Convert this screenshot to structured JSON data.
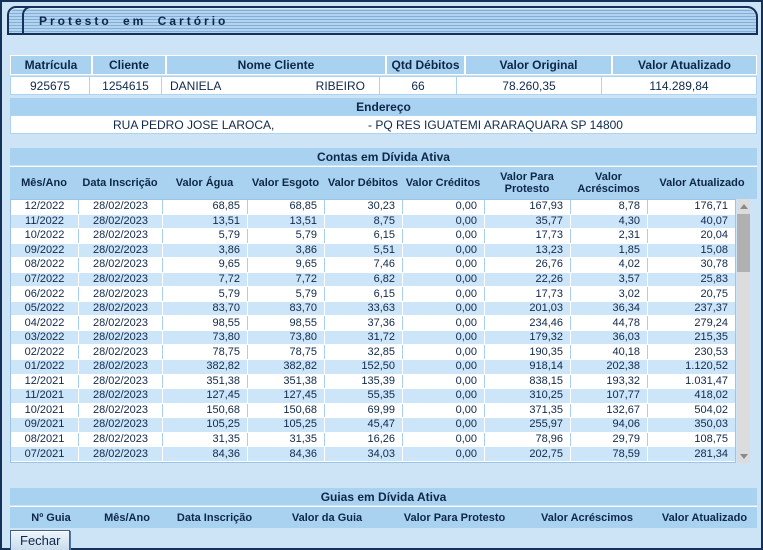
{
  "window": {
    "title": "Protesto em Cartório"
  },
  "summary_table": {
    "headers": [
      "Matrícula",
      "Cliente",
      "Nome Cliente",
      "Qtd Débitos",
      "Valor Original",
      "Valor Atualizado"
    ],
    "row": {
      "matricula": "925675",
      "cliente": "1254615",
      "nome_first": "DANIELA",
      "nome_last": "RIBEIRO",
      "qtd_debitos": "66",
      "valor_original": "78.260,35",
      "valor_atualizado": "114.289,84"
    }
  },
  "endereco": {
    "title": "Endereço",
    "line_left": "RUA PEDRO JOSE LAROCA,",
    "line_right": "- PQ RES IGUATEMI ARARAQUARA SP 14800"
  },
  "contas": {
    "title": "Contas em Dívida Ativa",
    "headers": [
      "Mês/Ano",
      "Data Inscrição",
      "Valor Água",
      "Valor Esgoto",
      "Valor Débitos",
      "Valor Créditos",
      "Valor Para\nProtesto",
      "Valor\nAcréscimos",
      "Valor Atualizado"
    ],
    "rows": [
      [
        "12/2022",
        "28/02/2023",
        "68,85",
        "68,85",
        "30,23",
        "0,00",
        "167,93",
        "8,78",
        "176,71"
      ],
      [
        "11/2022",
        "28/02/2023",
        "13,51",
        "13,51",
        "8,75",
        "0,00",
        "35,77",
        "4,30",
        "40,07"
      ],
      [
        "10/2022",
        "28/02/2023",
        "5,79",
        "5,79",
        "6,15",
        "0,00",
        "17,73",
        "2,31",
        "20,04"
      ],
      [
        "09/2022",
        "28/02/2023",
        "3,86",
        "3,86",
        "5,51",
        "0,00",
        "13,23",
        "1,85",
        "15,08"
      ],
      [
        "08/2022",
        "28/02/2023",
        "9,65",
        "9,65",
        "7,46",
        "0,00",
        "26,76",
        "4,02",
        "30,78"
      ],
      [
        "07/2022",
        "28/02/2023",
        "7,72",
        "7,72",
        "6,82",
        "0,00",
        "22,26",
        "3,57",
        "25,83"
      ],
      [
        "06/2022",
        "28/02/2023",
        "5,79",
        "5,79",
        "6,15",
        "0,00",
        "17,73",
        "3,02",
        "20,75"
      ],
      [
        "05/2022",
        "28/02/2023",
        "83,70",
        "83,70",
        "33,63",
        "0,00",
        "201,03",
        "36,34",
        "237,37"
      ],
      [
        "04/2022",
        "28/02/2023",
        "98,55",
        "98,55",
        "37,36",
        "0,00",
        "234,46",
        "44,78",
        "279,24"
      ],
      [
        "03/2022",
        "28/02/2023",
        "73,80",
        "73,80",
        "31,72",
        "0,00",
        "179,32",
        "36,03",
        "215,35"
      ],
      [
        "02/2022",
        "28/02/2023",
        "78,75",
        "78,75",
        "32,85",
        "0,00",
        "190,35",
        "40,18",
        "230,53"
      ],
      [
        "01/2022",
        "28/02/2023",
        "382,82",
        "382,82",
        "152,50",
        "0,00",
        "918,14",
        "202,38",
        "1.120,52"
      ],
      [
        "12/2021",
        "28/02/2023",
        "351,38",
        "351,38",
        "135,39",
        "0,00",
        "838,15",
        "193,32",
        "1.031,47"
      ],
      [
        "11/2021",
        "28/02/2023",
        "127,45",
        "127,45",
        "55,35",
        "0,00",
        "310,25",
        "107,77",
        "418,02"
      ],
      [
        "10/2021",
        "28/02/2023",
        "150,68",
        "150,68",
        "69,99",
        "0,00",
        "371,35",
        "132,67",
        "504,02"
      ],
      [
        "09/2021",
        "28/02/2023",
        "105,25",
        "105,25",
        "45,47",
        "0,00",
        "255,97",
        "94,06",
        "350,03"
      ],
      [
        "08/2021",
        "28/02/2023",
        "31,35",
        "31,35",
        "16,26",
        "0,00",
        "78,96",
        "29,79",
        "108,75"
      ],
      [
        "07/2021",
        "28/02/2023",
        "84,36",
        "84,36",
        "34,03",
        "0,00",
        "202,75",
        "78,59",
        "281,34"
      ]
    ]
  },
  "guias": {
    "title": "Guias em Dívida Ativa",
    "headers": [
      "Nº Guia",
      "Mês/Ano",
      "Data Inscrição",
      "Valor da Guia",
      "Valor Para Protesto",
      "Valor Acréscimos",
      "Valor Atualizado"
    ],
    "rows": []
  },
  "footer": {
    "close_label": "Fechar"
  },
  "colors": {
    "band_blue": "#a9d2f1",
    "row_alt_blue": "#cde5f9",
    "window_bg": "#cde3f6",
    "border_navy": "#14315a",
    "text_navy": "#10294a",
    "grid_blue": "#9cc4e4"
  }
}
